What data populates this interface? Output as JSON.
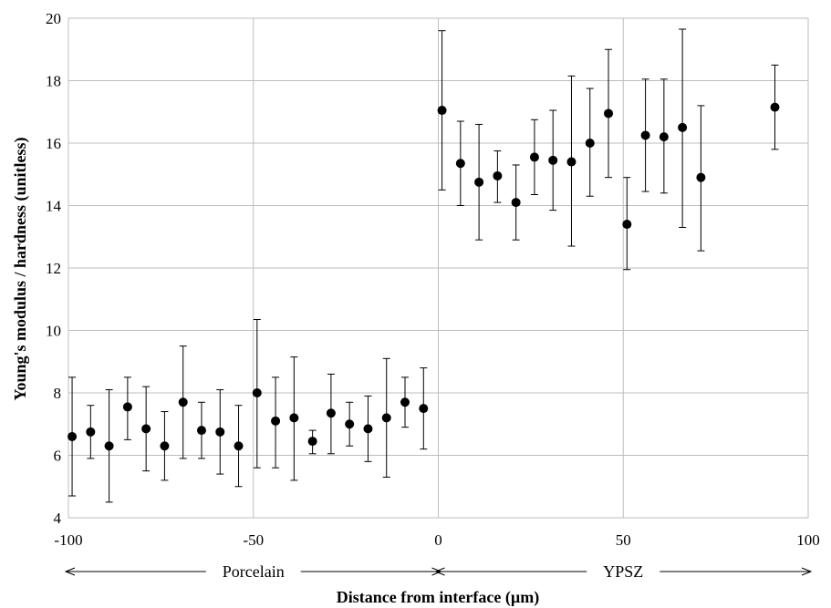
{
  "chart_data": {
    "type": "scatter",
    "title": "",
    "xlabel": "Distance from interface (µm)",
    "ylabel": "Young's modulus / hardness (unitless)",
    "xlim": [
      -100,
      100
    ],
    "ylim": [
      4,
      20
    ],
    "x_ticks": [
      -100,
      -50,
      0,
      50,
      100
    ],
    "y_ticks": [
      4,
      6,
      8,
      10,
      12,
      14,
      16,
      18,
      20
    ],
    "grid": true,
    "legend": false,
    "marker_color": "#000000",
    "regions": [
      {
        "label": "Porcelain",
        "from": -100,
        "to": 0
      },
      {
        "label": "YPSZ",
        "from": 0,
        "to": 100
      }
    ],
    "series": [
      {
        "points": [
          {
            "x": -99,
            "y": 6.6,
            "lo": 4.7,
            "hi": 8.5
          },
          {
            "x": -94,
            "y": 6.75,
            "lo": 5.9,
            "hi": 7.6
          },
          {
            "x": -89,
            "y": 6.3,
            "lo": 4.5,
            "hi": 8.1
          },
          {
            "x": -84,
            "y": 7.55,
            "lo": 6.5,
            "hi": 8.5
          },
          {
            "x": -79,
            "y": 6.85,
            "lo": 5.5,
            "hi": 8.2
          },
          {
            "x": -74,
            "y": 6.3,
            "lo": 5.2,
            "hi": 7.4
          },
          {
            "x": -69,
            "y": 7.7,
            "lo": 5.9,
            "hi": 9.5
          },
          {
            "x": -64,
            "y": 6.8,
            "lo": 5.9,
            "hi": 7.7
          },
          {
            "x": -59,
            "y": 6.75,
            "lo": 5.4,
            "hi": 8.1
          },
          {
            "x": -54,
            "y": 6.3,
            "lo": 5.0,
            "hi": 7.6
          },
          {
            "x": -49,
            "y": 8.0,
            "lo": 5.6,
            "hi": 10.35
          },
          {
            "x": -44,
            "y": 7.1,
            "lo": 5.6,
            "hi": 8.5
          },
          {
            "x": -39,
            "y": 7.2,
            "lo": 5.2,
            "hi": 9.15
          },
          {
            "x": -34,
            "y": 6.45,
            "lo": 6.05,
            "hi": 6.8
          },
          {
            "x": -29,
            "y": 7.35,
            "lo": 6.05,
            "hi": 8.6
          },
          {
            "x": -24,
            "y": 7.0,
            "lo": 6.3,
            "hi": 7.7
          },
          {
            "x": -19,
            "y": 6.85,
            "lo": 5.8,
            "hi": 7.9
          },
          {
            "x": -14,
            "y": 7.2,
            "lo": 5.3,
            "hi": 9.1
          },
          {
            "x": -9,
            "y": 7.7,
            "lo": 6.9,
            "hi": 8.5
          },
          {
            "x": -4,
            "y": 7.5,
            "lo": 6.2,
            "hi": 8.8
          },
          {
            "x": 1,
            "y": 17.05,
            "lo": 14.5,
            "hi": 19.6
          },
          {
            "x": 6,
            "y": 15.35,
            "lo": 14.0,
            "hi": 16.7
          },
          {
            "x": 11,
            "y": 14.75,
            "lo": 12.9,
            "hi": 16.6
          },
          {
            "x": 16,
            "y": 14.95,
            "lo": 14.1,
            "hi": 15.75
          },
          {
            "x": 21,
            "y": 14.1,
            "lo": 12.9,
            "hi": 15.3
          },
          {
            "x": 26,
            "y": 15.55,
            "lo": 14.35,
            "hi": 16.75
          },
          {
            "x": 31,
            "y": 15.45,
            "lo": 13.85,
            "hi": 17.05
          },
          {
            "x": 36,
            "y": 15.4,
            "lo": 12.7,
            "hi": 18.15
          },
          {
            "x": 41,
            "y": 16.0,
            "lo": 14.3,
            "hi": 17.75
          },
          {
            "x": 46,
            "y": 16.95,
            "lo": 14.9,
            "hi": 19.0
          },
          {
            "x": 51,
            "y": 13.4,
            "lo": 11.95,
            "hi": 14.9
          },
          {
            "x": 56,
            "y": 16.25,
            "lo": 14.45,
            "hi": 18.05
          },
          {
            "x": 61,
            "y": 16.2,
            "lo": 14.4,
            "hi": 18.05
          },
          {
            "x": 66,
            "y": 16.5,
            "lo": 13.3,
            "hi": 19.65
          },
          {
            "x": 71,
            "y": 14.9,
            "lo": 12.55,
            "hi": 17.2
          },
          {
            "x": 91,
            "y": 17.15,
            "lo": 15.8,
            "hi": 18.5
          }
        ]
      }
    ]
  }
}
